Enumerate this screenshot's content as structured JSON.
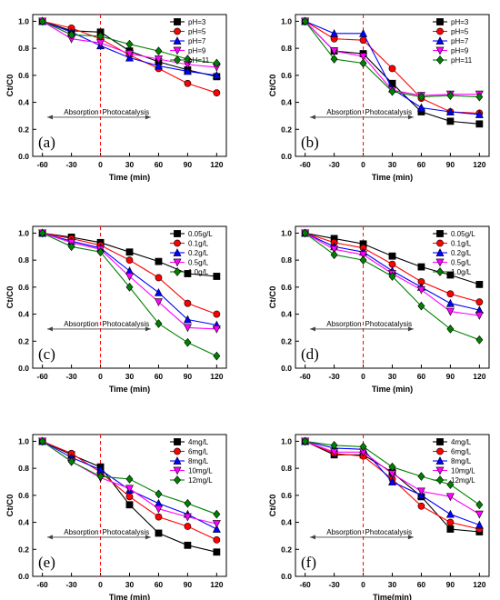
{
  "figure": {
    "arrow_labels": {
      "left": "Absorption",
      "right": "Photocatalysis"
    },
    "colors": {
      "black": "#000000",
      "red": "#ff0000",
      "blue": "#0000ff",
      "magenta": "#ff00ff",
      "green": "#008000",
      "divider": "#ff0000"
    }
  },
  "chart_data": [
    {
      "panel": "(a)",
      "type": "line",
      "xlabel": "Time (min)",
      "ylabel": "Ct/C0",
      "x": [
        -60,
        -30,
        0,
        30,
        60,
        90,
        120
      ],
      "xlim": [
        -70,
        130
      ],
      "ylim": [
        0.0,
        1.05
      ],
      "yticks": [
        0.0,
        0.2,
        0.4,
        0.6,
        0.8,
        1.0
      ],
      "legend_position": "top-right",
      "series": [
        {
          "name": "pH=3",
          "color": "#000000",
          "marker": "square",
          "values": [
            1.0,
            0.93,
            0.92,
            0.78,
            0.7,
            0.64,
            0.59
          ]
        },
        {
          "name": "pH=5",
          "color": "#ff0000",
          "marker": "circle",
          "values": [
            1.0,
            0.95,
            0.87,
            0.75,
            0.65,
            0.54,
            0.47
          ]
        },
        {
          "name": "pH=7",
          "color": "#0000ff",
          "marker": "triangle",
          "values": [
            1.0,
            0.92,
            0.82,
            0.73,
            0.67,
            0.63,
            0.6
          ]
        },
        {
          "name": "pH=9",
          "color": "#ff00ff",
          "marker": "tri-down",
          "values": [
            1.0,
            0.87,
            0.84,
            0.76,
            0.72,
            0.68,
            0.66
          ]
        },
        {
          "name": "pH=11",
          "color": "#008000",
          "marker": "diamond",
          "values": [
            1.0,
            0.9,
            0.89,
            0.83,
            0.78,
            0.72,
            0.69
          ]
        }
      ]
    },
    {
      "panel": "(b)",
      "type": "line",
      "xlabel": "Time (min)",
      "ylabel": "Ct/C0",
      "x": [
        -60,
        -30,
        0,
        30,
        60,
        90,
        120
      ],
      "xlim": [
        -70,
        130
      ],
      "ylim": [
        0.0,
        1.05
      ],
      "yticks": [
        0.0,
        0.2,
        0.4,
        0.6,
        0.8,
        1.0
      ],
      "legend_position": "top-right",
      "series": [
        {
          "name": "pH=3",
          "color": "#000000",
          "marker": "square",
          "values": [
            1.0,
            0.78,
            0.76,
            0.54,
            0.33,
            0.26,
            0.24
          ]
        },
        {
          "name": "pH=5",
          "color": "#ff0000",
          "marker": "circle",
          "values": [
            1.0,
            0.87,
            0.86,
            0.65,
            0.43,
            0.33,
            0.32
          ]
        },
        {
          "name": "pH=7",
          "color": "#0000ff",
          "marker": "triangle",
          "values": [
            1.0,
            0.91,
            0.91,
            0.5,
            0.36,
            0.33,
            0.31
          ]
        },
        {
          "name": "pH=9",
          "color": "#ff00ff",
          "marker": "tri-down",
          "values": [
            1.0,
            0.78,
            0.74,
            0.49,
            0.45,
            0.46,
            0.46
          ]
        },
        {
          "name": "pH=11",
          "color": "#008000",
          "marker": "diamond",
          "values": [
            1.0,
            0.72,
            0.69,
            0.48,
            0.44,
            0.45,
            0.44
          ]
        }
      ]
    },
    {
      "panel": "(c)",
      "type": "line",
      "xlabel": "Time (min)",
      "ylabel": "Ct/C0",
      "x": [
        -60,
        -30,
        0,
        30,
        60,
        90,
        120
      ],
      "xlim": [
        -70,
        130
      ],
      "ylim": [
        0.0,
        1.05
      ],
      "yticks": [
        0.0,
        0.2,
        0.4,
        0.6,
        0.8,
        1.0
      ],
      "legend_position": "top-right",
      "series": [
        {
          "name": "0.05g/L",
          "color": "#000000",
          "marker": "square",
          "values": [
            1.0,
            0.97,
            0.93,
            0.86,
            0.79,
            0.7,
            0.68
          ]
        },
        {
          "name": "0.1g/L",
          "color": "#ff0000",
          "marker": "circle",
          "values": [
            1.0,
            0.96,
            0.91,
            0.8,
            0.67,
            0.48,
            0.4
          ]
        },
        {
          "name": "0.2g/L",
          "color": "#0000ff",
          "marker": "triangle",
          "values": [
            1.0,
            0.94,
            0.89,
            0.72,
            0.56,
            0.36,
            0.32
          ]
        },
        {
          "name": "0.5g/L",
          "color": "#ff00ff",
          "marker": "tri-down",
          "values": [
            1.0,
            0.93,
            0.88,
            0.68,
            0.49,
            0.3,
            0.29
          ]
        },
        {
          "name": "1.0g/L",
          "color": "#008000",
          "marker": "diamond",
          "values": [
            1.0,
            0.9,
            0.86,
            0.6,
            0.33,
            0.19,
            0.09
          ]
        }
      ]
    },
    {
      "panel": "(d)",
      "type": "line",
      "xlabel": "Time (min)",
      "ylabel": "Ct/C0",
      "x": [
        -60,
        -30,
        0,
        30,
        60,
        90,
        120
      ],
      "xlim": [
        -70,
        130
      ],
      "ylim": [
        0.0,
        1.05
      ],
      "yticks": [
        0.0,
        0.2,
        0.4,
        0.6,
        0.8,
        1.0
      ],
      "legend_position": "top-right",
      "series": [
        {
          "name": "0.05g/L",
          "color": "#000000",
          "marker": "square",
          "values": [
            1.0,
            0.96,
            0.92,
            0.83,
            0.75,
            0.69,
            0.62
          ]
        },
        {
          "name": "0.1g/L",
          "color": "#ff0000",
          "marker": "circle",
          "values": [
            1.0,
            0.93,
            0.89,
            0.77,
            0.64,
            0.55,
            0.49
          ]
        },
        {
          "name": "0.2g/L",
          "color": "#0000ff",
          "marker": "triangle",
          "values": [
            1.0,
            0.9,
            0.86,
            0.72,
            0.6,
            0.48,
            0.43
          ]
        },
        {
          "name": "0.5g/L",
          "color": "#ff00ff",
          "marker": "tri-down",
          "values": [
            1.0,
            0.88,
            0.84,
            0.7,
            0.58,
            0.42,
            0.39
          ]
        },
        {
          "name": "1.0g/L",
          "color": "#008000",
          "marker": "diamond",
          "values": [
            1.0,
            0.84,
            0.8,
            0.68,
            0.46,
            0.29,
            0.21
          ]
        }
      ]
    },
    {
      "panel": "(e)",
      "type": "line",
      "xlabel": "Time (min)",
      "ylabel": "Ct/C0",
      "x": [
        -60,
        -30,
        0,
        30,
        60,
        90,
        120
      ],
      "xlim": [
        -70,
        130
      ],
      "ylim": [
        0.0,
        1.05
      ],
      "yticks": [
        0.0,
        0.2,
        0.4,
        0.6,
        0.8,
        1.0
      ],
      "legend_position": "top-right",
      "series": [
        {
          "name": "4mg/L",
          "color": "#000000",
          "marker": "square",
          "values": [
            1.0,
            0.9,
            0.81,
            0.53,
            0.32,
            0.23,
            0.18
          ]
        },
        {
          "name": "6mg/L",
          "color": "#ff0000",
          "marker": "circle",
          "values": [
            1.0,
            0.91,
            0.77,
            0.59,
            0.44,
            0.37,
            0.27
          ]
        },
        {
          "name": "8mg/L",
          "color": "#0000ff",
          "marker": "triangle",
          "values": [
            1.0,
            0.88,
            0.79,
            0.64,
            0.54,
            0.46,
            0.35
          ]
        },
        {
          "name": "10mg/L",
          "color": "#ff00ff",
          "marker": "tri-down",
          "values": [
            1.0,
            0.85,
            0.73,
            0.65,
            0.5,
            0.44,
            0.39
          ]
        },
        {
          "name": "12mg/L",
          "color": "#008000",
          "marker": "diamond",
          "values": [
            1.0,
            0.85,
            0.74,
            0.72,
            0.61,
            0.54,
            0.46
          ]
        }
      ]
    },
    {
      "panel": "(f)",
      "type": "line",
      "xlabel": "Time(min)",
      "ylabel": "Ct/C0",
      "x": [
        -60,
        -30,
        0,
        30,
        60,
        90,
        120
      ],
      "xlim": [
        -70,
        130
      ],
      "ylim": [
        0.0,
        1.05
      ],
      "yticks": [
        0.0,
        0.2,
        0.4,
        0.6,
        0.8,
        1.0
      ],
      "legend_position": "top-right",
      "series": [
        {
          "name": "4mg/L",
          "color": "#000000",
          "marker": "square",
          "values": [
            1.0,
            0.9,
            0.9,
            0.77,
            0.59,
            0.35,
            0.33
          ]
        },
        {
          "name": "6mg/L",
          "color": "#ff0000",
          "marker": "circle",
          "values": [
            1.0,
            0.91,
            0.89,
            0.72,
            0.52,
            0.4,
            0.35
          ]
        },
        {
          "name": "8mg/L",
          "color": "#0000ff",
          "marker": "triangle",
          "values": [
            1.0,
            0.95,
            0.94,
            0.7,
            0.6,
            0.46,
            0.38
          ]
        },
        {
          "name": "10mg/L",
          "color": "#ff00ff",
          "marker": "tri-down",
          "values": [
            1.0,
            0.92,
            0.92,
            0.76,
            0.63,
            0.59,
            0.46
          ]
        },
        {
          "name": "12mg/L",
          "color": "#008000",
          "marker": "diamond",
          "values": [
            1.0,
            0.97,
            0.96,
            0.81,
            0.74,
            0.68,
            0.53
          ]
        }
      ]
    }
  ]
}
